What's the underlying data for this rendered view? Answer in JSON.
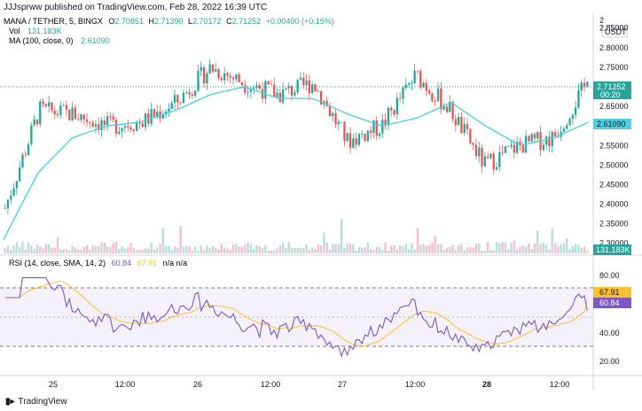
{
  "header": {
    "published": "JJJsprww published on TradingView.com, Feb 28, 2022 16:39 UTC"
  },
  "legend": {
    "symbol": "MANA / TETHER, 5, BINGX",
    "o_label": "O",
    "o_value": "2.70851",
    "h_label": "H",
    "h_value": "2.71390",
    "l_label": "L",
    "l_value": "2.70172",
    "c_label": "C",
    "c_value": "2.71252",
    "change": "+0.00400 (+0.15%)",
    "vol_label": "Vol",
    "vol_value": "131.183K",
    "ma_label": "MA (100, close, 0)",
    "ma_value": "2.61090",
    "rsi_label": "RSI (14, close, SMA, 14, 2)",
    "rsi_value": "60.84",
    "rsi_ma_value": "67.91",
    "rsi_na": "n/a  n/a"
  },
  "price_axis": {
    "currency": "USDT",
    "ticks": [
      "2.85000",
      "2.80000",
      "2.75000",
      "2.70000",
      "2.65000",
      "2.60000",
      "2.55000",
      "2.50000",
      "2.45000",
      "2.40000",
      "2.35000",
      "2.30000"
    ],
    "last_price": "2.71252",
    "countdown": "00:20",
    "ma_badge": "2.61090",
    "vol_badge": "131.183K",
    "top_partial": "2"
  },
  "rsi_axis": {
    "ticks": [
      "80.00",
      "40.00",
      "20.00"
    ],
    "ma_badge": "67.91",
    "rsi_badge": "60.84"
  },
  "time_axis": {
    "labels": [
      "25",
      "12:00",
      "26",
      "12:00",
      "27",
      "12:00",
      "28",
      "12:00"
    ]
  },
  "footer": {
    "brand": "TradingView"
  },
  "colors": {
    "up": "#26a69a",
    "down": "#ef5350",
    "ma": "#4dd0e1",
    "rsi": "#7e57c2",
    "rsi_ma": "#fbc02d",
    "last": "#26a69a",
    "vol_up": "#b2dfdb",
    "vol_down": "#f8bbd0"
  },
  "chart_data": [
    {
      "type": "candlestick",
      "title": "MANA / TETHER, 5, BINGX",
      "x": [
        "24 12:00",
        "24 18:00",
        "25",
        "25 06:00",
        "25 12:00",
        "25 18:00",
        "26",
        "26 06:00",
        "26 12:00",
        "26 18:00",
        "27",
        "27 06:00",
        "27 12:00",
        "27 18:00",
        "28",
        "28 06:00",
        "28 12:00",
        "28 16:39"
      ],
      "close_path": [
        2.39,
        2.64,
        2.63,
        2.6,
        2.61,
        2.66,
        2.75,
        2.71,
        2.68,
        2.71,
        2.56,
        2.6,
        2.73,
        2.64,
        2.5,
        2.55,
        2.57,
        2.71
      ],
      "ma100_path": [
        2.31,
        2.48,
        2.57,
        2.6,
        2.61,
        2.64,
        2.68,
        2.7,
        2.67,
        2.67,
        2.63,
        2.6,
        2.62,
        2.66,
        2.6,
        2.55,
        2.57,
        2.61
      ],
      "ylim": [
        2.27,
        2.89
      ],
      "last": 2.71252
    },
    {
      "type": "line",
      "title": "RSI (14, close, SMA, 14, 2)",
      "levels": [
        70,
        50,
        30
      ],
      "ylim": [
        15,
        90
      ],
      "rsi_last": 60.84,
      "rsi_ma_last": 67.91
    }
  ]
}
